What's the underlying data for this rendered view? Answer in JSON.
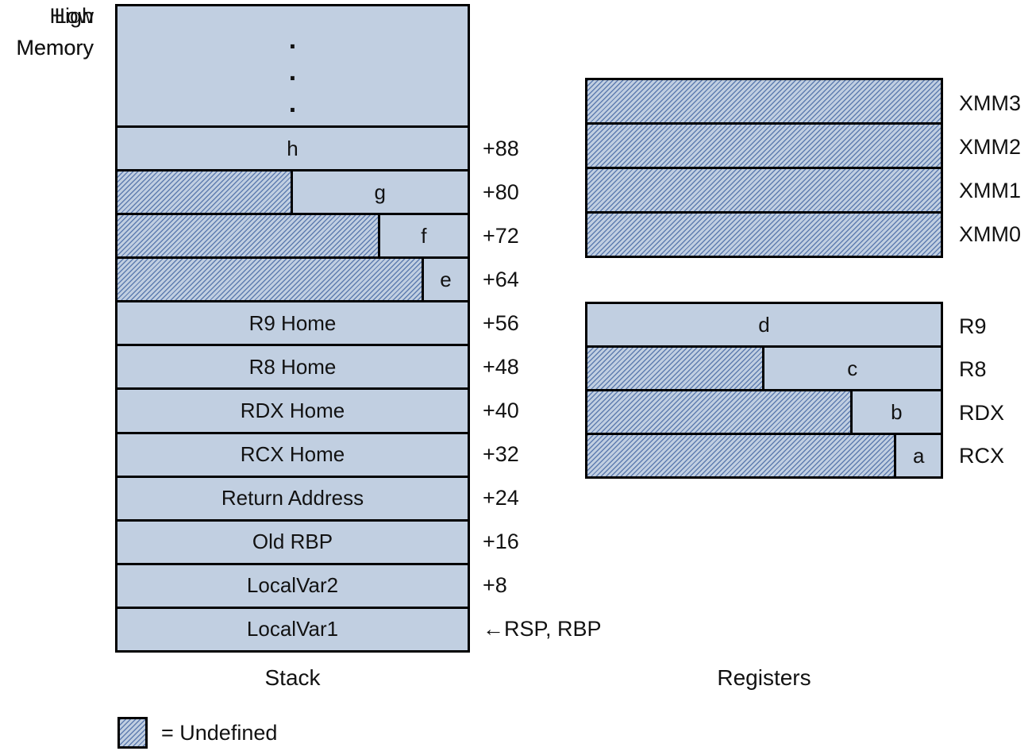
{
  "colors": {
    "fill": "#c1cfe1",
    "hatch_line": "#5f7db0",
    "border": "#000000"
  },
  "left_labels": {
    "high_memory_line1": "High",
    "high_memory_line2": "Memory",
    "low_memory_line1": "Low",
    "low_memory_line2": "Memory"
  },
  "stack": {
    "caption": "Stack",
    "ellipsis_dots": [
      ".",
      ".",
      "."
    ],
    "rows": [
      {
        "label": "h",
        "offset": "+88",
        "hatch_pct": 0
      },
      {
        "label": "g",
        "offset": "+80",
        "hatch_pct": 50
      },
      {
        "label": "f",
        "offset": "+72",
        "hatch_pct": 75
      },
      {
        "label": "e",
        "offset": "+64",
        "hatch_pct": 87.5
      },
      {
        "label": "R9 Home",
        "offset": "+56",
        "hatch_pct": 0
      },
      {
        "label": "R8 Home",
        "offset": "+48",
        "hatch_pct": 0
      },
      {
        "label": "RDX Home",
        "offset": "+40",
        "hatch_pct": 0
      },
      {
        "label": "RCX Home",
        "offset": "+32",
        "hatch_pct": 0
      },
      {
        "label": "Return Address",
        "offset": "+24",
        "hatch_pct": 0
      },
      {
        "label": "Old RBP",
        "offset": "+16",
        "hatch_pct": 0
      },
      {
        "label": "LocalVar2",
        "offset": "+8",
        "hatch_pct": 0
      },
      {
        "label": "LocalVar1",
        "offset": "←RSP, RBP",
        "hatch_pct": 0
      }
    ]
  },
  "registers": {
    "caption": "Registers",
    "xmm": [
      {
        "name": "XMM3",
        "hatch_pct": 100
      },
      {
        "name": "XMM2",
        "hatch_pct": 100
      },
      {
        "name": "XMM1",
        "hatch_pct": 100
      },
      {
        "name": "XMM0",
        "hatch_pct": 100
      }
    ],
    "gpr": [
      {
        "name": "R9",
        "value": "d",
        "hatch_pct": 0
      },
      {
        "name": "R8",
        "value": "c",
        "hatch_pct": 50
      },
      {
        "name": "RDX",
        "value": "b",
        "hatch_pct": 75
      },
      {
        "name": "RCX",
        "value": "a",
        "hatch_pct": 87.5
      }
    ]
  },
  "legend": {
    "text": "= Undefined"
  }
}
